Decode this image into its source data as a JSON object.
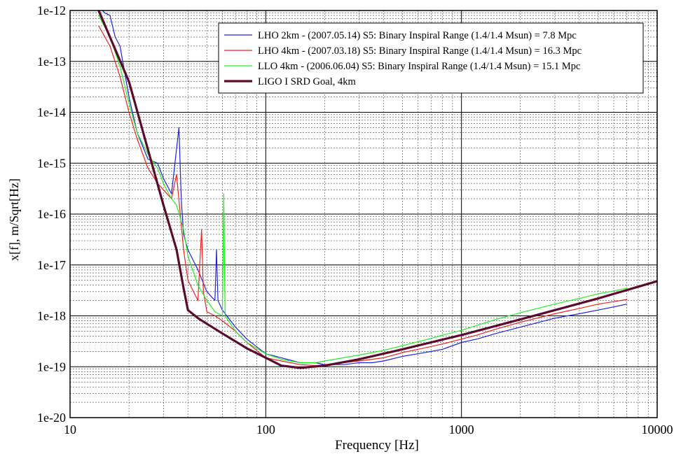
{
  "chart_data": {
    "type": "line",
    "xscale": "log",
    "yscale": "log",
    "xlim": [
      10,
      10000
    ],
    "ylim": [
      1e-20,
      1e-12
    ],
    "xlabel": "Frequency [Hz]",
    "ylabel": "x[f], m/Sqrt[Hz]",
    "grid": true,
    "legend_position": "top-right",
    "x_tick_labels": [
      {
        "value": 10,
        "label": "10"
      },
      {
        "value": 100,
        "label": "100"
      },
      {
        "value": 1000,
        "label": "1000"
      },
      {
        "value": 10000,
        "label": "10000"
      }
    ],
    "y_tick_labels": [
      {
        "value": 1e-20,
        "label": "1e-20"
      },
      {
        "value": 1e-19,
        "label": "1e-19"
      },
      {
        "value": 1e-18,
        "label": "1e-18"
      },
      {
        "value": 1e-17,
        "label": "1e-17"
      },
      {
        "value": 1e-16,
        "label": "1e-16"
      },
      {
        "value": 1e-15,
        "label": "1e-15"
      },
      {
        "value": 1e-14,
        "label": "1e-14"
      },
      {
        "value": 1e-13,
        "label": "1e-13"
      },
      {
        "value": 1e-12,
        "label": "1e-12"
      }
    ],
    "series": [
      {
        "name": "LHO 2km - (2007.05.14) S5: Binary Inspiral Range (1.4/1.4 Msun) = 7.8 Mpc",
        "color": "#2222dd",
        "x": [
          14,
          15,
          16,
          17,
          18,
          20,
          22,
          25,
          28,
          30,
          33,
          36,
          37,
          38,
          40,
          45,
          50,
          55,
          56,
          57,
          60,
          70,
          80,
          100,
          120,
          150,
          180,
          200,
          250,
          300,
          350,
          400,
          500,
          600,
          700,
          800,
          1000,
          1200,
          1500,
          2000,
          3000,
          4000,
          5000,
          6000,
          7000
        ],
        "y": [
          1.2e-12,
          9e-13,
          8e-13,
          3e-13,
          2e-13,
          2e-14,
          4e-15,
          1.2e-15,
          1e-15,
          5e-16,
          2.5e-16,
          5e-15,
          2e-16,
          4e-17,
          2e-17,
          8e-18,
          3e-18,
          2e-18,
          2e-17,
          2e-18,
          1.3e-18,
          6e-19,
          3.5e-19,
          1.8e-19,
          1.5e-19,
          1.2e-19,
          1.2e-19,
          1.1e-19,
          1.1e-19,
          1.2e-19,
          1.2e-19,
          1.3e-19,
          1.6e-19,
          1.8e-19,
          2e-19,
          2.2e-19,
          3e-19,
          3.5e-19,
          4.5e-19,
          6e-19,
          9e-19,
          1.1e-18,
          1.3e-18,
          1.5e-18,
          1.7e-18
        ]
      },
      {
        "name": "LHO 4km - (2007.03.18) S5: Binary Inspiral Range (1.4/1.4 Msun) = 16.3 Mpc",
        "color": "#ee2222",
        "x": [
          14,
          16,
          18,
          20,
          22,
          25,
          28,
          30,
          33,
          35,
          38,
          40,
          45,
          47,
          48,
          50,
          55,
          60,
          70,
          80,
          100,
          120,
          150,
          180,
          200,
          250,
          300,
          350,
          400,
          500,
          600,
          700,
          800,
          1000,
          1200,
          1500,
          2000,
          3000,
          4000,
          5000,
          6000,
          7000
        ],
        "y": [
          5e-13,
          2e-13,
          5e-14,
          1e-14,
          3e-15,
          8e-16,
          4e-16,
          3e-16,
          2e-16,
          6e-16,
          2e-17,
          5e-18,
          2e-18,
          5e-17,
          3e-18,
          1.2e-18,
          1e-18,
          8e-19,
          5e-19,
          3e-19,
          1.5e-19,
          1.3e-19,
          1.1e-19,
          1.05e-19,
          1.1e-19,
          1.2e-19,
          1.3e-19,
          1.4e-19,
          1.5e-19,
          1.9e-19,
          2.2e-19,
          2.5e-19,
          2.8e-19,
          3.5e-19,
          4.2e-19,
          5.5e-19,
          7.5e-19,
          1.1e-18,
          1.4e-18,
          1.7e-18,
          1.9e-18,
          2.1e-18
        ]
      },
      {
        "name": "LLO 4km - (2006.06.04) S5: Binary Inspiral Range (1.4/1.4 Msun) = 15.1 Mpc",
        "color": "#22ee22",
        "x": [
          14,
          16,
          18,
          20,
          22,
          25,
          28,
          30,
          33,
          35,
          38,
          40,
          45,
          50,
          55,
          60,
          61,
          62,
          70,
          80,
          100,
          120,
          150,
          180,
          200,
          250,
          300,
          350,
          400,
          500,
          600,
          700,
          800,
          1000,
          1200,
          1500,
          2000,
          3000,
          4000,
          5000,
          6000,
          7000
        ],
        "y": [
          8e-13,
          3e-13,
          8e-14,
          1.5e-14,
          4e-15,
          1.5e-15,
          8e-16,
          4e-16,
          2e-16,
          1.5e-16,
          5e-17,
          1.5e-17,
          4e-18,
          2e-18,
          1.2e-18,
          1e-18,
          2.5e-16,
          1e-18,
          5e-19,
          3e-19,
          1.8e-19,
          1.4e-19,
          1.2e-19,
          1.2e-19,
          1.3e-19,
          1.5e-19,
          1.7e-19,
          1.9e-19,
          2.1e-19,
          2.6e-19,
          3.1e-19,
          3.6e-19,
          4.2e-19,
          5.2e-19,
          6.5e-19,
          8.5e-19,
          1.15e-18,
          1.7e-18,
          2.2e-18,
          2.7e-18,
          3.1e-18,
          3.5e-18
        ]
      },
      {
        "name": "LIGO I SRD Goal, 4km",
        "color": "#5a0a2a",
        "x": [
          14,
          20,
          30,
          35,
          38,
          40,
          45,
          50,
          60,
          80,
          100,
          120,
          150,
          200,
          300,
          500,
          1000,
          2000,
          5000,
          10000
        ],
        "y": [
          1e-12,
          4e-14,
          1.5e-16,
          2e-17,
          3.5e-18,
          1.3e-18,
          9e-19,
          7e-19,
          4.5e-19,
          2.3e-19,
          1.5e-19,
          1.05e-19,
          9.5e-20,
          1.05e-19,
          1.4e-19,
          2.2e-19,
          4.2e-19,
          8.5e-19,
          2.2e-18,
          4.8e-18
        ]
      }
    ]
  }
}
